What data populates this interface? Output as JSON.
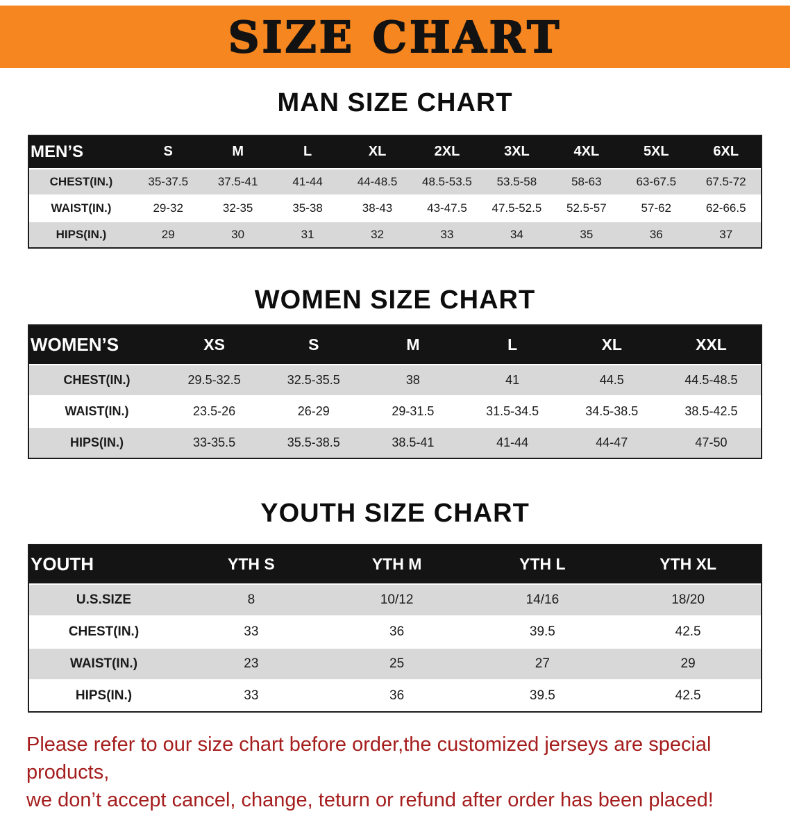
{
  "banner": {
    "title": "SIZE CHART",
    "bg_color": "#F6861F",
    "text_color": "#121212"
  },
  "men": {
    "heading": "MAN SIZE CHART",
    "table": {
      "header_label": "MEN’S",
      "columns": [
        "S",
        "M",
        "L",
        "XL",
        "2XL",
        "3XL",
        "4XL",
        "5XL",
        "6XL"
      ],
      "rows": [
        {
          "label": "CHEST(IN.)",
          "values": [
            "35-37.5",
            "37.5-41",
            "41-44",
            "44-48.5",
            "48.5-53.5",
            "53.5-58",
            "58-63",
            "63-67.5",
            "67.5-72"
          ]
        },
        {
          "label": "WAIST(IN.)",
          "values": [
            "29-32",
            "32-35",
            "35-38",
            "38-43",
            "43-47.5",
            "47.5-52.5",
            "52.5-57",
            "57-62",
            "62-66.5"
          ]
        },
        {
          "label": "HIPS(IN.)",
          "values": [
            "29",
            "30",
            "31",
            "32",
            "33",
            "34",
            "35",
            "36",
            "37"
          ]
        }
      ]
    }
  },
  "women": {
    "heading": "WOMEN SIZE CHART",
    "table": {
      "header_label": "WOMEN’S",
      "columns": [
        "XS",
        "S",
        "M",
        "L",
        "XL",
        "XXL"
      ],
      "rows": [
        {
          "label": "CHEST(IN.)",
          "values": [
            "29.5-32.5",
            "32.5-35.5",
            "38",
            "41",
            "44.5",
            "44.5-48.5"
          ]
        },
        {
          "label": "WAIST(IN.)",
          "values": [
            "23.5-26",
            "26-29",
            "29-31.5",
            "31.5-34.5",
            "34.5-38.5",
            "38.5-42.5"
          ]
        },
        {
          "label": "HIPS(IN.)",
          "values": [
            "33-35.5",
            "35.5-38.5",
            "38.5-41",
            "41-44",
            "44-47",
            "47-50"
          ]
        }
      ]
    }
  },
  "youth": {
    "heading": "YOUTH SIZE CHART",
    "table": {
      "header_label": "YOUTH",
      "columns": [
        "YTH S",
        "YTH M",
        "YTH L",
        "YTH XL"
      ],
      "rows": [
        {
          "label": "U.S.SIZE",
          "values": [
            "8",
            "10/12",
            "14/16",
            "18/20"
          ]
        },
        {
          "label": "CHEST(IN.)",
          "values": [
            "33",
            "36",
            "39.5",
            "42.5"
          ]
        },
        {
          "label": "WAIST(IN.)",
          "values": [
            "23",
            "25",
            "27",
            "29"
          ]
        },
        {
          "label": "HIPS(IN.)",
          "values": [
            "33",
            "36",
            "39.5",
            "42.5"
          ]
        }
      ]
    }
  },
  "disclaimer": {
    "line1": "Please refer to our size chart before order,the customized jerseys are special products,",
    "line2": "we don’t accept cancel, change, teturn or refund after order has been placed!",
    "color": "#A51D1D"
  }
}
